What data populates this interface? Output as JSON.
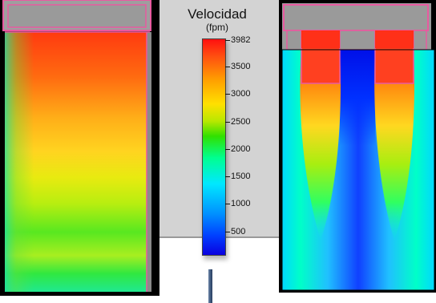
{
  "legend": {
    "title": "Velocidad",
    "unit": "(fpm)",
    "max": 3982,
    "ticks": [
      {
        "value": 3982,
        "label": "3982"
      },
      {
        "value": 3500,
        "label": "3500"
      },
      {
        "value": 3000,
        "label": "3000"
      },
      {
        "value": 2500,
        "label": "2500"
      },
      {
        "value": 2000,
        "label": "2000"
      },
      {
        "value": 1500,
        "label": "1500"
      },
      {
        "value": 1000,
        "label": "1000"
      },
      {
        "value": 500,
        "label": "500"
      }
    ]
  },
  "colors": {
    "outline": "#e85aa0",
    "frame": "#555555",
    "scale_high": "#ff1010",
    "scale_low": "#0a00e0"
  }
}
